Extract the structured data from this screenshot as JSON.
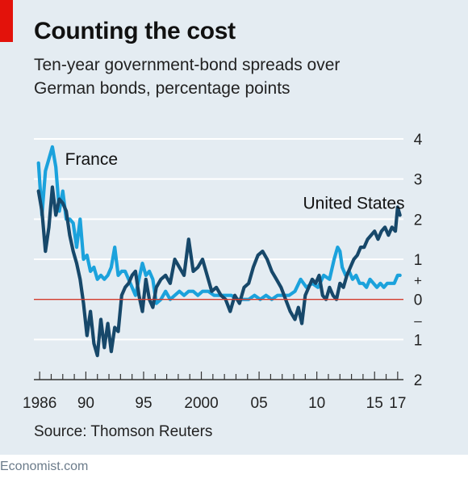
{
  "chart_data": {
    "type": "line",
    "title": "Counting the cost",
    "subtitle": "Ten-year government-bond spreads over German bonds, percentage points",
    "source": "Source: Thomson Reuters",
    "x_tick_labels": [
      {
        "x": 1986,
        "label": "1986"
      },
      {
        "x": 1990,
        "label": "90"
      },
      {
        "x": 1995,
        "label": "95"
      },
      {
        "x": 2000,
        "label": "2000"
      },
      {
        "x": 2005,
        "label": "05"
      },
      {
        "x": 2010,
        "label": "10"
      },
      {
        "x": 2015,
        "label": "15"
      },
      {
        "x": 2017,
        "label": "17"
      }
    ],
    "y_tick_labels": [
      {
        "y": 4,
        "label": "4"
      },
      {
        "y": 3,
        "label": "3"
      },
      {
        "y": 2,
        "label": "2"
      },
      {
        "y": 1,
        "label": "1"
      },
      {
        "y": 0,
        "label": "0"
      },
      {
        "y": -1,
        "label": "1"
      },
      {
        "y": -2,
        "label": "2"
      }
    ],
    "sign_labels": {
      "plus": "+",
      "minus": "–"
    },
    "xlim": [
      1985.5,
      2017.5
    ],
    "ylim": [
      -2,
      4
    ],
    "zero_line": true,
    "series": [
      {
        "name": "France",
        "color": "#1ba2dc",
        "x": [
          1985.9,
          1986.2,
          1986.5,
          1986.8,
          1987.1,
          1987.4,
          1987.7,
          1988.0,
          1988.3,
          1988.6,
          1988.9,
          1989.2,
          1989.5,
          1989.8,
          1990.1,
          1990.4,
          1990.7,
          1991.0,
          1991.3,
          1991.6,
          1991.9,
          1992.2,
          1992.5,
          1992.8,
          1993.1,
          1993.4,
          1993.7,
          1994.0,
          1994.3,
          1994.6,
          1994.9,
          1995.2,
          1995.5,
          1995.8,
          1996.1,
          1996.5,
          1996.9,
          1997.3,
          1997.7,
          1998.1,
          1998.5,
          1998.9,
          1999.3,
          1999.7,
          2000.1,
          2000.6,
          2001.1,
          2001.6,
          2002.1,
          2002.6,
          2003.1,
          2003.6,
          2004.1,
          2004.6,
          2005.1,
          2005.6,
          2006.1,
          2006.6,
          2007.1,
          2007.6,
          2008.1,
          2008.6,
          2009.1,
          2009.6,
          2010.1,
          2010.6,
          2011.1,
          2011.5,
          2011.8,
          2012.0,
          2012.2,
          2012.5,
          2012.8,
          2013.1,
          2013.4,
          2013.7,
          2014.0,
          2014.3,
          2014.6,
          2014.9,
          2015.2,
          2015.5,
          2015.8,
          2016.1,
          2016.4,
          2016.7,
          2017.0,
          2017.2
        ],
        "y": [
          3.4,
          2.1,
          3.2,
          3.5,
          3.8,
          3.3,
          2.2,
          2.7,
          2.0,
          2.0,
          1.9,
          1.3,
          2.0,
          1.0,
          1.1,
          0.7,
          0.8,
          0.5,
          0.6,
          0.5,
          0.6,
          0.8,
          1.3,
          0.6,
          0.7,
          0.7,
          0.5,
          0.3,
          0.1,
          0.5,
          0.9,
          0.6,
          0.7,
          0.5,
          -0.1,
          0.0,
          0.2,
          0.0,
          0.1,
          0.2,
          0.1,
          0.2,
          0.2,
          0.1,
          0.2,
          0.2,
          0.1,
          0.1,
          0.1,
          0.1,
          0.0,
          0.0,
          0.0,
          0.1,
          0.0,
          0.1,
          0.0,
          0.1,
          0.1,
          0.1,
          0.2,
          0.5,
          0.3,
          0.4,
          0.3,
          0.6,
          0.5,
          1.0,
          1.3,
          1.2,
          0.8,
          0.6,
          0.7,
          0.5,
          0.6,
          0.4,
          0.4,
          0.3,
          0.5,
          0.4,
          0.3,
          0.4,
          0.3,
          0.4,
          0.4,
          0.4,
          0.6,
          0.6
        ]
      },
      {
        "name": "United States",
        "color": "#17486a",
        "x": [
          1985.9,
          1986.2,
          1986.5,
          1986.8,
          1987.1,
          1987.4,
          1987.7,
          1988.0,
          1988.3,
          1988.6,
          1988.9,
          1989.2,
          1989.5,
          1989.8,
          1990.1,
          1990.4,
          1990.7,
          1991.0,
          1991.3,
          1991.6,
          1991.9,
          1992.2,
          1992.5,
          1992.8,
          1993.1,
          1993.4,
          1993.7,
          1994.0,
          1994.3,
          1994.6,
          1994.9,
          1995.2,
          1995.5,
          1995.8,
          1996.1,
          1996.5,
          1996.9,
          1997.3,
          1997.7,
          1998.1,
          1998.5,
          1998.9,
          1999.3,
          1999.7,
          2000.1,
          2000.5,
          2000.9,
          2001.3,
          2001.7,
          2002.1,
          2002.5,
          2002.9,
          2003.3,
          2003.7,
          2004.1,
          2004.5,
          2004.9,
          2005.3,
          2005.7,
          2006.1,
          2006.5,
          2006.9,
          2007.3,
          2007.7,
          2008.1,
          2008.4,
          2008.7,
          2009.0,
          2009.3,
          2009.6,
          2009.9,
          2010.2,
          2010.5,
          2010.8,
          2011.1,
          2011.4,
          2011.7,
          2012.0,
          2012.3,
          2012.6,
          2012.9,
          2013.2,
          2013.5,
          2013.8,
          2014.1,
          2014.4,
          2014.7,
          2015.0,
          2015.3,
          2015.6,
          2015.9,
          2016.2,
          2016.5,
          2016.8,
          2017.0,
          2017.2
        ],
        "y": [
          2.7,
          2.2,
          1.2,
          1.8,
          2.8,
          2.1,
          2.5,
          2.4,
          2.2,
          1.6,
          1.2,
          0.9,
          0.5,
          -0.1,
          -0.9,
          -0.3,
          -1.1,
          -1.4,
          -0.5,
          -1.2,
          -0.6,
          -1.3,
          -0.7,
          -0.8,
          0.1,
          0.3,
          0.4,
          0.6,
          0.7,
          0.1,
          -0.3,
          0.5,
          0.0,
          -0.2,
          0.3,
          0.5,
          0.6,
          0.4,
          1.0,
          0.8,
          0.6,
          1.5,
          0.7,
          0.8,
          1.0,
          0.6,
          0.2,
          0.3,
          0.1,
          0.0,
          -0.3,
          0.1,
          -0.1,
          0.3,
          0.4,
          0.8,
          1.1,
          1.2,
          1.0,
          0.7,
          0.5,
          0.3,
          0.0,
          -0.3,
          -0.5,
          -0.2,
          -0.6,
          0.1,
          0.3,
          0.5,
          0.4,
          0.6,
          0.1,
          0.0,
          0.3,
          0.1,
          0.0,
          0.4,
          0.3,
          0.6,
          0.8,
          1.0,
          1.1,
          1.3,
          1.3,
          1.5,
          1.6,
          1.7,
          1.5,
          1.7,
          1.8,
          1.6,
          1.8,
          1.7,
          2.3,
          2.1
        ]
      }
    ],
    "annotations": [
      {
        "text": "France",
        "x": 1988.2,
        "y": 3.5
      },
      {
        "text": "United States",
        "x": 2008.8,
        "y": 2.4
      }
    ]
  },
  "brand": "Economist.com"
}
